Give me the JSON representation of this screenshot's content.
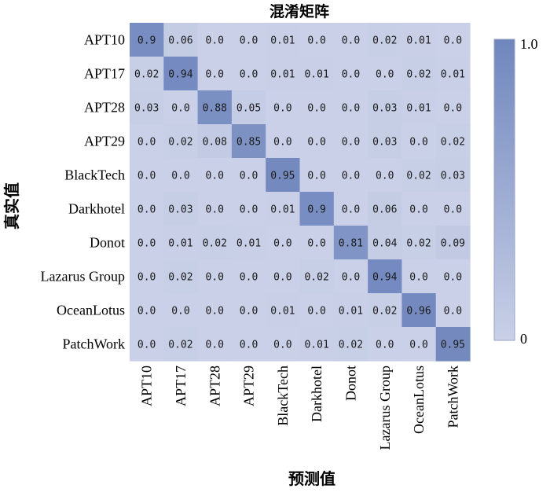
{
  "chart_data": {
    "type": "heatmap",
    "title": "混淆矩阵",
    "xlabel": "预测值",
    "ylabel": "真实值",
    "rows": [
      "APT10",
      "APT17",
      "APT28",
      "APT29",
      "BlackTech",
      "Darkhotel",
      "Donot",
      "Lazarus Group",
      "OceanLotus",
      "PatchWork"
    ],
    "cols": [
      "APT10",
      "APT17",
      "APT28",
      "APT29",
      "BlackTech",
      "Darkhotel",
      "Donot",
      "Lazarus Group",
      "OceanLotus",
      "PatchWork"
    ],
    "values": [
      [
        "0.9",
        "0.06",
        "0.0",
        "0.0",
        "0.01",
        "0.0",
        "0.0",
        "0.02",
        "0.01",
        "0.0"
      ],
      [
        "0.02",
        "0.94",
        "0.0",
        "0.0",
        "0.01",
        "0.01",
        "0.0",
        "0.0",
        "0.02",
        "0.01"
      ],
      [
        "0.03",
        "0.0",
        "0.88",
        "0.05",
        "0.0",
        "0.0",
        "0.0",
        "0.03",
        "0.01",
        "0.0"
      ],
      [
        "0.0",
        "0.02",
        "0.08",
        "0.85",
        "0.0",
        "0.0",
        "0.0",
        "0.03",
        "0.0",
        "0.02"
      ],
      [
        "0.0",
        "0.0",
        "0.0",
        "0.0",
        "0.95",
        "0.0",
        "0.0",
        "0.0",
        "0.02",
        "0.03"
      ],
      [
        "0.0",
        "0.03",
        "0.0",
        "0.0",
        "0.01",
        "0.9",
        "0.0",
        "0.06",
        "0.0",
        "0.0"
      ],
      [
        "0.0",
        "0.01",
        "0.02",
        "0.01",
        "0.0",
        "0.0",
        "0.81",
        "0.04",
        "0.02",
        "0.09"
      ],
      [
        "0.0",
        "0.02",
        "0.0",
        "0.0",
        "0.0",
        "0.02",
        "0.0",
        "0.94",
        "0.0",
        "0.0"
      ],
      [
        "0.0",
        "0.0",
        "0.0",
        "0.0",
        "0.01",
        "0.0",
        "0.01",
        "0.02",
        "0.96",
        "0.0"
      ],
      [
        "0.0",
        "0.02",
        "0.0",
        "0.0",
        "0.0",
        "0.01",
        "0.02",
        "0.0",
        "0.0",
        "0.95"
      ]
    ],
    "colorbar": {
      "min": 0,
      "max": 1,
      "min_label": "0",
      "max_label": "1.0"
    },
    "colors": {
      "low": "#c9d0e7",
      "high": "#6f86bd"
    }
  }
}
